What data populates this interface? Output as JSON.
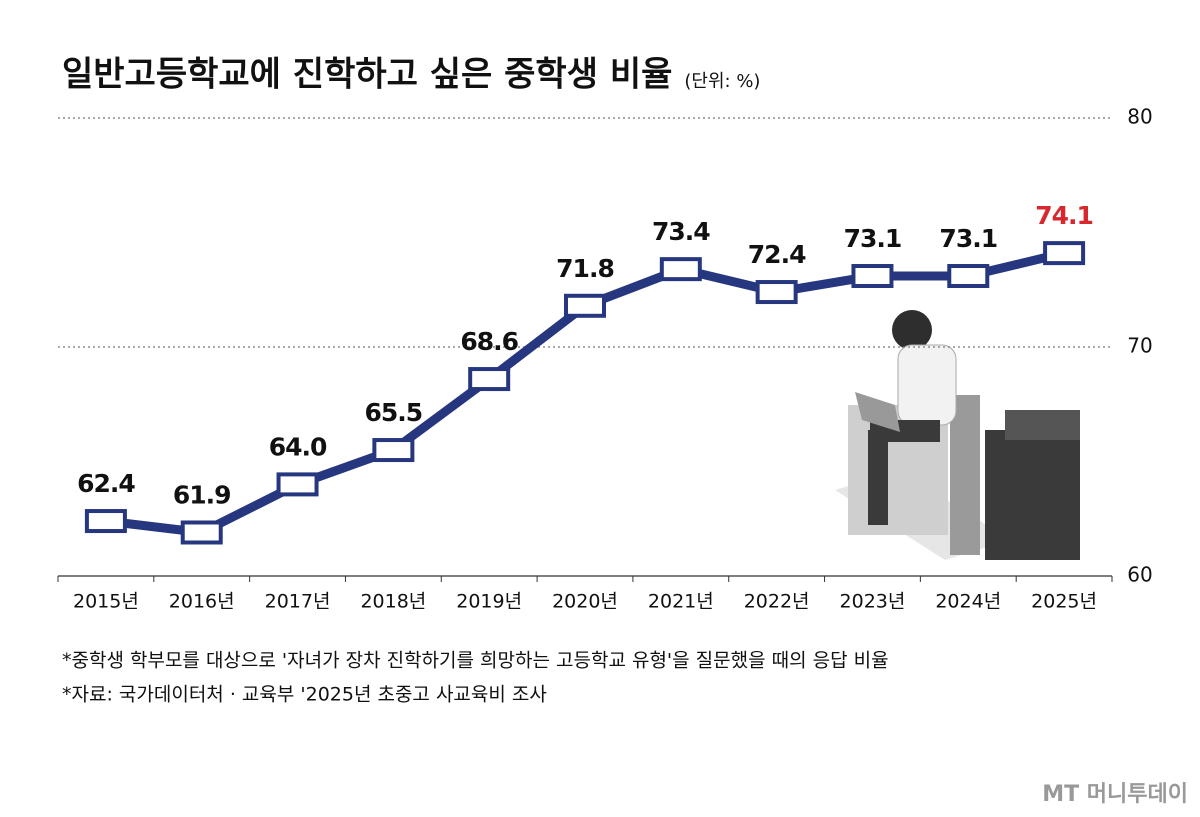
{
  "chart_data": {
    "type": "line",
    "title": "일반고등학교에 진학하고 싶은 중학생 비율",
    "subtitle": "(단위: %)",
    "categories": [
      "2015년",
      "2016년",
      "2017년",
      "2018년",
      "2019년",
      "2020년",
      "2021년",
      "2022년",
      "2023년",
      "2024년",
      "2025년"
    ],
    "values": [
      62.4,
      61.9,
      64.0,
      65.5,
      68.6,
      71.8,
      73.4,
      72.4,
      73.1,
      73.1,
      74.1
    ],
    "value_labels": [
      "62.4",
      "61.9",
      "64.0",
      "65.5",
      "68.6",
      "71.8",
      "73.4",
      "72.4",
      "73.1",
      "73.1",
      "74.1"
    ],
    "color": "#26377f",
    "highlight": {
      "index": 10,
      "color": "#d7282f"
    },
    "ylim": [
      60,
      80
    ],
    "yticks": [
      60,
      70,
      80
    ],
    "grid": true,
    "y_axis_side": "right",
    "notes": [
      "*중학생 학부모를 대상으로 '자녀가 장차 진학하기를 희망하는 고등학교 유형'을 질문했을 때의 응답 비율",
      "*자료: 국가데이터처 · 교육부 '2025년 초중고 사교육비 조사"
    ],
    "source_logo": "MT 머니투데이"
  }
}
